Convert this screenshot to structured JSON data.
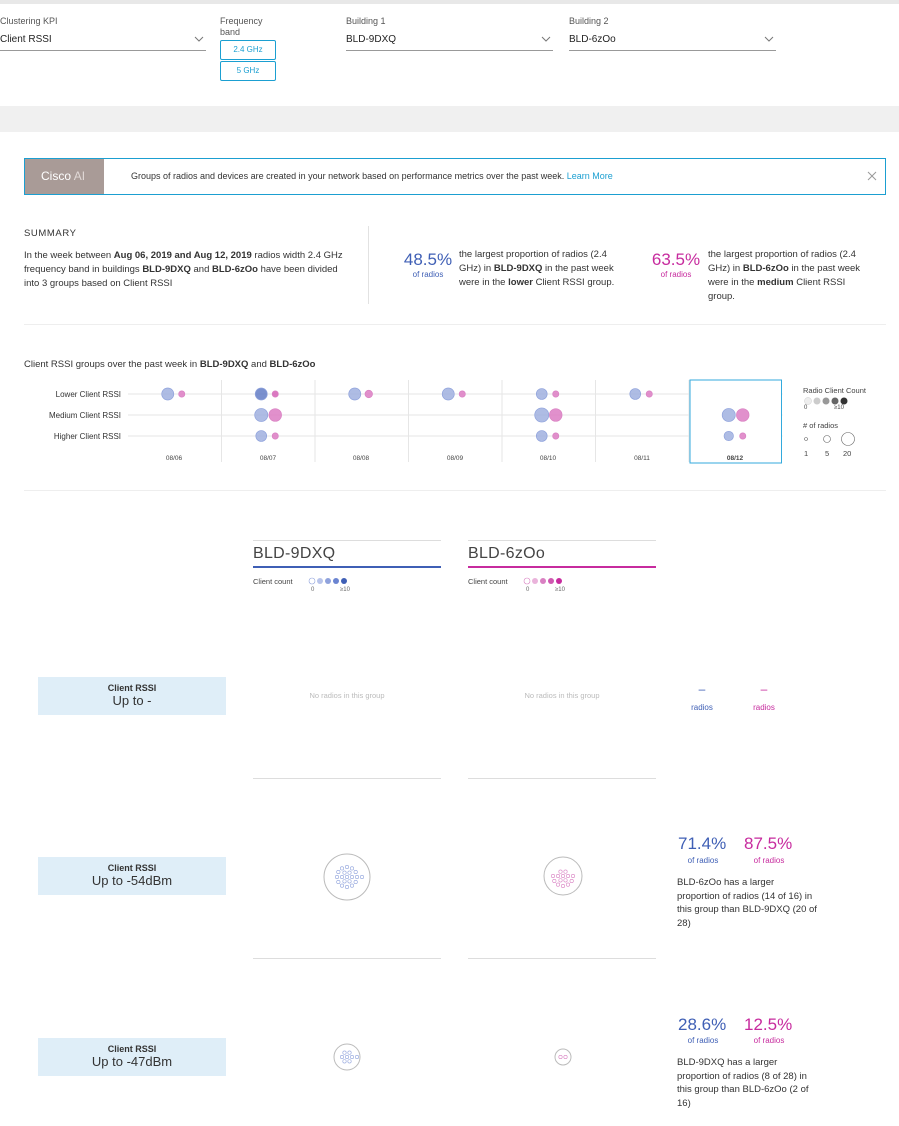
{
  "filters": {
    "kpi": {
      "label": "Clustering KPI",
      "value": "Client RSSI"
    },
    "band": {
      "label": "Frequency band",
      "options": [
        "2.4 GHz",
        "5 GHz"
      ]
    },
    "building1": {
      "label": "Building 1",
      "value": "BLD-9DXQ"
    },
    "building2": {
      "label": "Building 2",
      "value": "BLD-6zOo"
    }
  },
  "banner": {
    "tag_a": "Cisco",
    "tag_b": "AI",
    "text": "Groups of radios and devices are created in your network based on performance metrics over the past week.",
    "link": "Learn More"
  },
  "summary": {
    "title": "SUMMARY",
    "t1": "In the week between ",
    "b1": "Aug 06, 2019 and Aug 12, 2019",
    "t2": " radios width 2.4 GHz frequency band in buildings ",
    "b2": "BLD-9DXQ",
    "t3": " and ",
    "b3": "BLD-6zOo",
    "t4": " have been divided into 3 groups based on Client RSSI",
    "stat1": {
      "pct": "48.5%",
      "sub": "of radios",
      "t1": "the largest proportion of radios (2.4 GHz) in ",
      "b1": "BLD-9DXQ",
      "t2": " in the past week were in the ",
      "b2": "lower",
      "t3": " Client RSSI group."
    },
    "stat2": {
      "pct": "63.5%",
      "sub": "of radios",
      "t1": "the largest proportion of radios (2.4 GHz) in ",
      "b1": "BLD-6zOo",
      "t2": " in the past week were in the ",
      "b2": "medium",
      "t3": " Client RSSI group."
    }
  },
  "chart": {
    "title_pre": "Client RSSI groups over the past week in ",
    "title_b1": "BLD-9DXQ",
    "title_mid": " and ",
    "title_b2": "BLD-6zOo",
    "rows": [
      "Lower Client RSSI",
      "Medium Client RSSI",
      "Higher Client RSSI"
    ],
    "dates": [
      "08/06",
      "08/07",
      "08/08",
      "08/09",
      "08/10",
      "08/11",
      "08/12"
    ],
    "selected_date": "08/12",
    "legend": {
      "count_title": "Radio Client Count",
      "count_min": "0",
      "count_max": "≥10",
      "size_title": "# of radios",
      "sizes": [
        "1",
        "5",
        "20"
      ]
    }
  },
  "chart_data": {
    "type": "scatter",
    "x": [
      "08/06",
      "08/07",
      "08/08",
      "08/09",
      "08/10",
      "08/11",
      "08/12"
    ],
    "y_categories": [
      "Lower Client RSSI",
      "Medium Client RSSI",
      "Higher Client RSSI"
    ],
    "series": [
      {
        "name": "BLD-9DXQ",
        "color": "#6b84d1",
        "points": [
          {
            "x": "08/06",
            "y": "Lower Client RSSI",
            "radios": 8,
            "intensity": 0.2
          },
          {
            "x": "08/07",
            "y": "Lower Client RSSI",
            "radios": 8,
            "intensity": 0.7
          },
          {
            "x": "08/07",
            "y": "Medium Client RSSI",
            "radios": 10,
            "intensity": 0.2
          },
          {
            "x": "08/07",
            "y": "Higher Client RSSI",
            "radios": 6,
            "intensity": 0.2
          },
          {
            "x": "08/08",
            "y": "Lower Client RSSI",
            "radios": 8,
            "intensity": 0.2
          },
          {
            "x": "08/09",
            "y": "Lower Client RSSI",
            "radios": 8,
            "intensity": 0.2
          },
          {
            "x": "08/10",
            "y": "Lower Client RSSI",
            "radios": 6,
            "intensity": 0.2
          },
          {
            "x": "08/10",
            "y": "Medium Client RSSI",
            "radios": 12,
            "intensity": 0.2
          },
          {
            "x": "08/10",
            "y": "Higher Client RSSI",
            "radios": 6,
            "intensity": 0.2
          },
          {
            "x": "08/11",
            "y": "Lower Client RSSI",
            "radios": 6,
            "intensity": 0.2
          },
          {
            "x": "08/12",
            "y": "Medium Client RSSI",
            "radios": 10,
            "intensity": 0.2
          },
          {
            "x": "08/12",
            "y": "Higher Client RSSI",
            "radios": 4,
            "intensity": 0.2
          }
        ]
      },
      {
        "name": "BLD-6zOo",
        "color": "#d16bb8",
        "points": [
          {
            "x": "08/06",
            "y": "Lower Client RSSI",
            "radios": 1,
            "intensity": 0.4
          },
          {
            "x": "08/07",
            "y": "Lower Client RSSI",
            "radios": 1,
            "intensity": 0.6
          },
          {
            "x": "08/07",
            "y": "Medium Client RSSI",
            "radios": 9,
            "intensity": 0.4
          },
          {
            "x": "08/07",
            "y": "Higher Client RSSI",
            "radios": 1,
            "intensity": 0.4
          },
          {
            "x": "08/08",
            "y": "Lower Client RSSI",
            "radios": 2,
            "intensity": 0.4
          },
          {
            "x": "08/09",
            "y": "Lower Client RSSI",
            "radios": 1,
            "intensity": 0.4
          },
          {
            "x": "08/10",
            "y": "Lower Client RSSI",
            "radios": 1,
            "intensity": 0.4
          },
          {
            "x": "08/10",
            "y": "Medium Client RSSI",
            "radios": 9,
            "intensity": 0.4
          },
          {
            "x": "08/10",
            "y": "Higher Client RSSI",
            "radios": 1,
            "intensity": 0.4
          },
          {
            "x": "08/11",
            "y": "Lower Client RSSI",
            "radios": 1,
            "intensity": 0.4
          },
          {
            "x": "08/12",
            "y": "Medium Client RSSI",
            "radios": 9,
            "intensity": 0.4
          },
          {
            "x": "08/12",
            "y": "Higher Client RSSI",
            "radios": 1,
            "intensity": 0.4
          }
        ]
      }
    ]
  },
  "buildings": {
    "b1": {
      "name": "BLD-9DXQ",
      "color": "#3f5fb5"
    },
    "b2": {
      "name": "BLD-6zOo",
      "color": "#c72b9e"
    },
    "client_count": "Client count",
    "min": "0",
    "max": "≥10"
  },
  "groups": [
    {
      "title": "Client RSSI",
      "value": "Up to -",
      "b1_text": "No radios in this group",
      "b2_text": "No radios in this group",
      "pct1": "–",
      "pct2": "–",
      "sub": "radios",
      "b1_radios": 0,
      "b2_radios": 0
    },
    {
      "title": "Client RSSI",
      "value": "Up to -54dBm",
      "pct1": "71.4%",
      "pct2": "87.5%",
      "sub": "of radios",
      "desc": "BLD-6zOo has a larger proportion of radios (14 of 16) in this group than BLD-9DXQ (20 of 28)",
      "b1_radios": 20,
      "b2_radios": 14
    },
    {
      "title": "Client RSSI",
      "value": "Up to -47dBm",
      "pct1": "28.6%",
      "pct2": "12.5%",
      "sub": "of radios",
      "desc": "BLD-9DXQ has a larger proportion of radios (8 of 28) in this group than BLD-6zOo (2 of 16)",
      "b1_radios": 8,
      "b2_radios": 2
    }
  ],
  "colors": {
    "accent": "#1b9fd1",
    "blue": "#3f5fb5",
    "pink": "#c72b9e"
  }
}
